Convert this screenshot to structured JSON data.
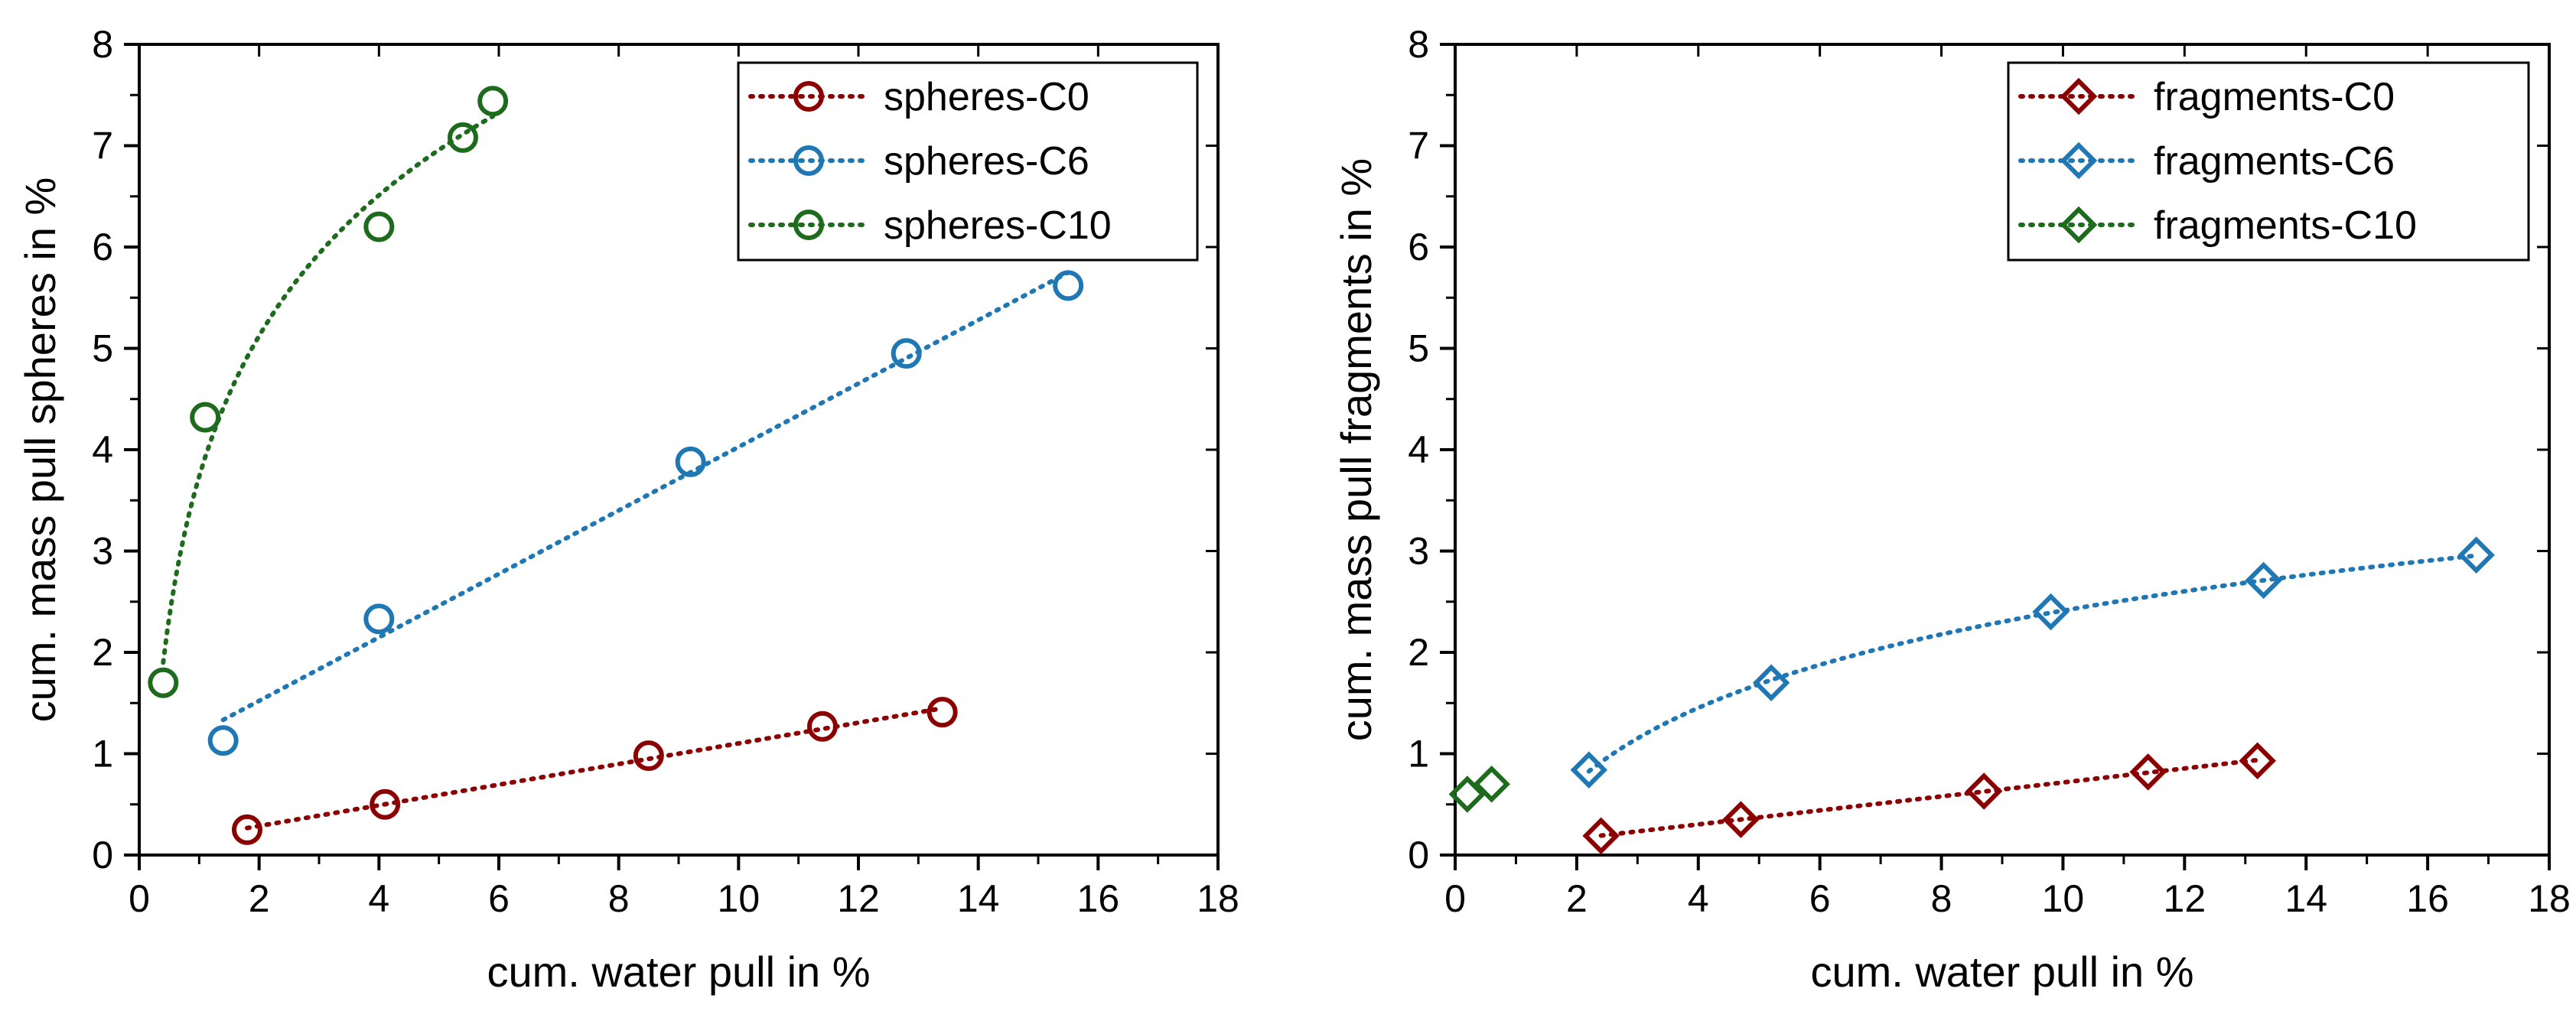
{
  "colors": {
    "C0": "#8b0000",
    "C6": "#1f77b4",
    "C10": "#1e6b1e",
    "axis": "#000000"
  },
  "chart_data": [
    {
      "type": "scatter",
      "marker": "circle",
      "xlabel": "cum. water pull in %",
      "ylabel": "cum. mass pull spheres in %",
      "xlim": [
        0,
        18
      ],
      "ylim": [
        0,
        8
      ],
      "xticks": [
        "0",
        "2",
        "4",
        "6",
        "8",
        "10",
        "12",
        "14",
        "16",
        "18"
      ],
      "yticks": [
        "0",
        "1",
        "2",
        "3",
        "4",
        "5",
        "6",
        "7",
        "8"
      ],
      "legend_position": "top-right",
      "series": [
        {
          "name": "spheres-C0",
          "color_key": "C0",
          "fit": "linear",
          "x": [
            1.8,
            4.1,
            8.5,
            11.4,
            13.4
          ],
          "y": [
            0.25,
            0.5,
            0.98,
            1.27,
            1.41
          ]
        },
        {
          "name": "spheres-C6",
          "color_key": "C6",
          "fit": "linear",
          "x": [
            1.4,
            4.0,
            9.2,
            12.8,
            15.5
          ],
          "y": [
            1.13,
            2.33,
            3.88,
            4.95,
            5.62
          ]
        },
        {
          "name": "spheres-C10",
          "color_key": "C10",
          "fit": "log",
          "x": [
            0.4,
            1.1,
            4.0,
            5.4,
            5.9
          ],
          "y": [
            1.7,
            4.32,
            6.2,
            7.08,
            7.44
          ]
        }
      ]
    },
    {
      "type": "scatter",
      "marker": "diamond",
      "xlabel": "cum. water pull in %",
      "ylabel": "cum. mass pull fragments in %",
      "xlim": [
        0,
        18
      ],
      "ylim": [
        0,
        8
      ],
      "xticks": [
        "0",
        "2",
        "4",
        "6",
        "8",
        "10",
        "12",
        "14",
        "16",
        "18"
      ],
      "yticks": [
        "0",
        "1",
        "2",
        "3",
        "4",
        "5",
        "6",
        "7",
        "8"
      ],
      "legend_position": "top-right",
      "series": [
        {
          "name": "fragments-C0",
          "color_key": "C0",
          "fit": "linear",
          "x": [
            2.4,
            4.7,
            8.7,
            11.4,
            13.2
          ],
          "y": [
            0.19,
            0.35,
            0.63,
            0.82,
            0.93
          ]
        },
        {
          "name": "fragments-C6",
          "color_key": "C6",
          "fit": "log",
          "x": [
            2.2,
            5.2,
            9.8,
            13.3,
            16.8
          ],
          "y": [
            0.84,
            1.7,
            2.4,
            2.71,
            2.96
          ]
        },
        {
          "name": "fragments-C10",
          "color_key": "C10",
          "fit": "none",
          "x": [
            0.2,
            0.6
          ],
          "y": [
            0.6,
            0.7
          ]
        }
      ]
    }
  ]
}
